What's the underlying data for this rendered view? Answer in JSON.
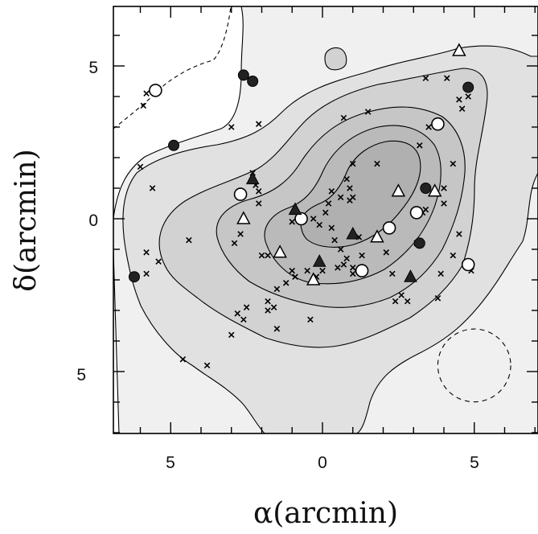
{
  "chart_data": {
    "type": "scatter",
    "title": "",
    "xlabel": "α(arcmin)",
    "ylabel": "δ(arcmin)",
    "xlim": [
      7,
      -7
    ],
    "ylim": [
      -7,
      7
    ],
    "xticks": [
      5,
      0,
      5
    ],
    "yticks": [
      5,
      0,
      5
    ],
    "x_tick_values": [
      5,
      0,
      -5
    ],
    "y_tick_values": [
      5,
      0,
      -5
    ],
    "grid": false,
    "legend": "none",
    "contours": {
      "levels": 6,
      "fills": [
        "#f0f0f0",
        "#e1e1e1",
        "#d2d2d2",
        "#c6c6c6",
        "#bababa",
        "#b0b0b0"
      ]
    },
    "beam_circle": {
      "x": -5.0,
      "y": -4.8,
      "r": 1.2
    },
    "series": [
      {
        "marker": "cross",
        "points": [
          [
            5.8,
            4.1
          ],
          [
            5.9,
            3.7
          ],
          [
            3.0,
            3.0
          ],
          [
            2.1,
            3.1
          ],
          [
            6.0,
            1.7
          ],
          [
            5.6,
            1.0
          ],
          [
            2.3,
            1.5
          ],
          [
            2.2,
            1.1
          ],
          [
            2.1,
            0.9
          ],
          [
            2.1,
            0.5
          ],
          [
            4.4,
            -0.7
          ],
          [
            2.9,
            -0.8
          ],
          [
            2.7,
            -0.5
          ],
          [
            5.8,
            -1.1
          ],
          [
            5.4,
            -1.4
          ],
          [
            5.8,
            -1.8
          ],
          [
            2.8,
            -3.1
          ],
          [
            2.5,
            -2.9
          ],
          [
            1.8,
            -2.7
          ],
          [
            1.6,
            -2.9
          ],
          [
            1.5,
            -2.3
          ],
          [
            1.2,
            -2.1
          ],
          [
            1.8,
            -1.2
          ],
          [
            1.0,
            -1.7
          ],
          [
            0.9,
            -1.9
          ],
          [
            0.5,
            -1.7
          ],
          [
            0.2,
            -1.9
          ],
          [
            0.0,
            -1.7
          ],
          [
            -0.5,
            -1.6
          ],
          [
            -0.6,
            -1.0
          ],
          [
            -0.8,
            -1.3
          ],
          [
            -1.0,
            -1.6
          ],
          [
            -0.4,
            -0.7
          ],
          [
            -0.3,
            -0.3
          ],
          [
            0.1,
            -0.2
          ],
          [
            0.3,
            0.0
          ],
          [
            0.7,
            0.1
          ],
          [
            1.0,
            -0.1
          ],
          [
            -0.1,
            0.2
          ],
          [
            -0.2,
            0.5
          ],
          [
            -0.6,
            0.7
          ],
          [
            -0.9,
            0.6
          ],
          [
            -1.0,
            0.7
          ],
          [
            -0.9,
            1.0
          ],
          [
            -0.8,
            1.3
          ],
          [
            -0.3,
            0.9
          ],
          [
            -1.0,
            1.8
          ],
          [
            -1.8,
            1.8
          ],
          [
            -3.2,
            2.4
          ],
          [
            -1.5,
            3.5
          ],
          [
            -0.7,
            3.3
          ],
          [
            -3.5,
            3.0
          ],
          [
            -3.8,
            3.0
          ],
          [
            -4.5,
            3.9
          ],
          [
            -4.6,
            3.6
          ],
          [
            -4.8,
            4.0
          ],
          [
            -3.4,
            4.6
          ],
          [
            -4.1,
            4.6
          ],
          [
            -4.3,
            1.8
          ],
          [
            -4.0,
            1.0
          ],
          [
            -4.0,
            0.5
          ],
          [
            -3.3,
            0.2
          ],
          [
            -3.1,
            -0.8
          ],
          [
            -2.1,
            -1.1
          ],
          [
            -2.3,
            -1.8
          ],
          [
            -2.6,
            -2.5
          ],
          [
            -2.4,
            -2.7
          ],
          [
            -2.8,
            -2.7
          ],
          [
            -3.8,
            -2.6
          ],
          [
            -4.5,
            -0.5
          ],
          [
            -4.9,
            -1.7
          ],
          [
            -1.3,
            -1.2
          ],
          [
            -1.0,
            -1.8
          ],
          [
            -0.7,
            -1.5
          ],
          [
            0.4,
            -3.3
          ],
          [
            4.6,
            -4.6
          ],
          [
            3.8,
            -4.8
          ],
          [
            3.0,
            -3.8
          ],
          [
            2.6,
            -3.3
          ],
          [
            1.5,
            -3.6
          ],
          [
            1.8,
            -3.0
          ],
          [
            -3.4,
            0.3
          ],
          [
            -4.3,
            -1.2
          ],
          [
            -3.9,
            -1.8
          ],
          [
            2.0,
            -1.2
          ],
          [
            -1.2,
            -0.6
          ]
        ]
      },
      {
        "marker": "filled-circle",
        "points": [
          [
            2.6,
            4.7
          ],
          [
            2.3,
            4.5
          ],
          [
            4.9,
            2.4
          ],
          [
            6.2,
            -1.9
          ],
          [
            -3.4,
            1.0
          ],
          [
            -3.2,
            -0.8
          ],
          [
            -4.8,
            4.3
          ]
        ]
      },
      {
        "marker": "open-circle",
        "points": [
          [
            5.5,
            4.2
          ],
          [
            2.7,
            0.8
          ],
          [
            0.7,
            0.0
          ],
          [
            -1.3,
            -1.7
          ],
          [
            -2.2,
            -0.3
          ],
          [
            -3.1,
            0.2
          ],
          [
            -3.8,
            3.1
          ],
          [
            -4.8,
            -1.5
          ]
        ]
      },
      {
        "marker": "filled-triangle",
        "points": [
          [
            2.3,
            1.3
          ],
          [
            0.9,
            0.3
          ],
          [
            0.1,
            -1.4
          ],
          [
            -1.0,
            -0.5
          ],
          [
            -2.9,
            -1.9
          ]
        ]
      },
      {
        "marker": "open-triangle",
        "points": [
          [
            2.6,
            0.0
          ],
          [
            1.4,
            -1.1
          ],
          [
            0.3,
            -2.0
          ],
          [
            -1.8,
            -0.6
          ],
          [
            -2.5,
            0.9
          ],
          [
            -3.7,
            0.9
          ],
          [
            -4.5,
            5.5
          ]
        ]
      }
    ]
  }
}
